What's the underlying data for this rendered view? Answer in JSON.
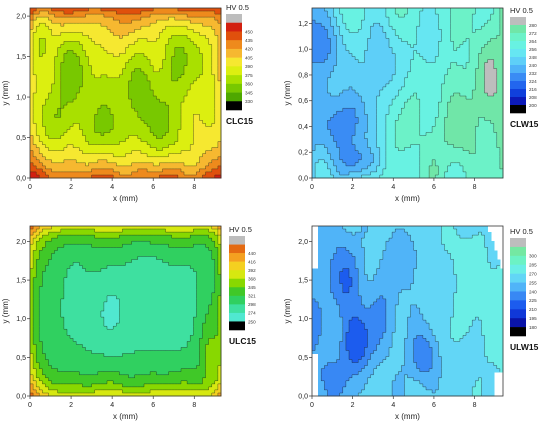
{
  "chart_data": [
    {
      "type": "heatmap",
      "panel_label": "CLC15",
      "xlabel": "x (mm)",
      "ylabel": "y (mm)",
      "xlim": [
        0,
        9.3
      ],
      "ylim": [
        0,
        2.1
      ],
      "x_ticks": [
        0,
        2,
        4,
        6,
        8
      ],
      "x_tick_labels": [
        "0",
        "2",
        "4",
        "6",
        "8"
      ],
      "y_ticks": [
        0,
        0.5,
        1,
        1.5,
        2
      ],
      "y_tick_labels": [
        "0,0",
        "0,5",
        "1,0",
        "1,5",
        "2,0"
      ],
      "colorbar": {
        "title": "HV 0.5",
        "levels": [
          330,
          345,
          360,
          375,
          390,
          405,
          420,
          435,
          450
        ],
        "labels": [
          "330",
          "345",
          "360",
          "375",
          "390",
          "405",
          "420",
          "435",
          "450"
        ],
        "colors": [
          "#000000",
          "#4ea800",
          "#78c800",
          "#a9e000",
          "#dcef10",
          "#f6e830",
          "#f6b830",
          "#ee8a1c",
          "#e0500c",
          "#d22010",
          "#bdbdbd"
        ]
      },
      "field": {
        "base": 383,
        "edges": [
          {
            "side": "bottom",
            "amp": 55,
            "scale": 0.28
          },
          {
            "side": "top",
            "amp": 62,
            "scale": 0.22
          },
          {
            "side": "left",
            "amp": 22,
            "scale": 0.4
          },
          {
            "side": "right",
            "amp": 18,
            "scale": 0.4
          }
        ],
        "blobs": [
          {
            "x": 2.2,
            "y": 1.3,
            "amp": -28,
            "sx": 0.8,
            "sy": 0.35
          },
          {
            "x": 5.6,
            "y": 1.0,
            "amp": -30,
            "sx": 1.2,
            "sy": 0.35
          },
          {
            "x": 3.6,
            "y": 0.55,
            "amp": -22,
            "sx": 1.0,
            "sy": 0.25
          },
          {
            "x": 7.4,
            "y": 1.6,
            "amp": -25,
            "sx": 0.7,
            "sy": 0.3
          },
          {
            "x": 1.3,
            "y": 0.7,
            "amp": -26,
            "sx": 0.5,
            "sy": 0.25
          },
          {
            "x": 6.6,
            "y": 0.45,
            "amp": -18,
            "sx": 0.9,
            "sy": 0.2
          },
          {
            "x": 0.5,
            "y": 1.7,
            "amp": -24,
            "sx": 0.4,
            "sy": 0.3
          },
          {
            "x": 4.3,
            "y": 1.7,
            "amp": 10,
            "sx": 0.8,
            "sy": 0.25
          }
        ],
        "waves": [
          {
            "kx": 2.1,
            "ky": 4.3,
            "amp": 7
          },
          {
            "kx": 3.7,
            "ky": 2.2,
            "amp": 5
          }
        ]
      },
      "domain": "rect"
    },
    {
      "type": "heatmap",
      "panel_label": "CLW15",
      "xlabel": "x (mm)",
      "ylabel": "y (mm)",
      "xlim": [
        0,
        9.4
      ],
      "ylim": [
        0,
        1.32
      ],
      "x_ticks": [
        0,
        2,
        4,
        6,
        8
      ],
      "x_tick_labels": [
        "0",
        "2",
        "4",
        "6",
        "8"
      ],
      "y_ticks": [
        0,
        0.2,
        0.4,
        0.6,
        0.8,
        1,
        1.2
      ],
      "y_tick_labels": [
        "0,0",
        "0,2",
        "0,4",
        "0,6",
        "0,8",
        "1,0",
        "1,2"
      ],
      "colorbar": {
        "title": "HV 0.5",
        "levels": [
          200,
          208,
          216,
          224,
          232,
          240,
          248,
          256,
          264,
          272,
          280
        ],
        "labels": [
          "200",
          "208",
          "216",
          "224",
          "232",
          "240",
          "248",
          "256",
          "264",
          "272",
          "280"
        ],
        "colors": [
          "#000000",
          "#0c1ab8",
          "#1040dc",
          "#2266ee",
          "#3a8cf4",
          "#4fb2f8",
          "#5ecff8",
          "#66e6f2",
          "#68f2e2",
          "#6cf2c8",
          "#70e6a8",
          "#bdbdbd"
        ]
      },
      "field": {
        "base": 262,
        "edges": [
          {
            "side": "left",
            "amp": -22,
            "scale": 0.8
          },
          {
            "side": "right",
            "amp": 10,
            "scale": 0.8
          }
        ],
        "blobs": [
          {
            "x": 1.7,
            "y": 0.42,
            "amp": -36,
            "sx": 0.8,
            "sy": 0.2
          },
          {
            "x": 0.8,
            "y": 1.0,
            "amp": -25,
            "sx": 0.6,
            "sy": 0.2
          },
          {
            "x": 3.2,
            "y": 0.9,
            "amp": -28,
            "sx": 0.5,
            "sy": 0.22
          },
          {
            "x": 2.4,
            "y": 0.12,
            "amp": -22,
            "sx": 0.8,
            "sy": 0.1
          },
          {
            "x": 5.5,
            "y": 1.0,
            "amp": -10,
            "sx": 0.8,
            "sy": 0.2
          },
          {
            "x": 8.2,
            "y": 0.6,
            "amp": 12,
            "sx": 1.0,
            "sy": 0.3
          },
          {
            "x": 6.4,
            "y": 0.3,
            "amp": 8,
            "sx": 0.9,
            "sy": 0.2
          }
        ],
        "waves": [
          {
            "kx": 2.3,
            "ky": 7.0,
            "amp": 5
          },
          {
            "kx": 3.3,
            "ky": 3.5,
            "amp": 4
          }
        ]
      },
      "domain": "rect"
    },
    {
      "type": "heatmap",
      "panel_label": "ULC15",
      "xlabel": "x (mm)",
      "ylabel": "y (mm)",
      "xlim": [
        0,
        9.3
      ],
      "ylim": [
        0,
        2.2
      ],
      "x_ticks": [
        0,
        2,
        4,
        6,
        8
      ],
      "x_tick_labels": [
        "0",
        "2",
        "4",
        "6",
        "8"
      ],
      "y_ticks": [
        0,
        0.5,
        1,
        1.5,
        2
      ],
      "y_tick_labels": [
        "0,0",
        "0,5",
        "1,0",
        "1,5",
        "2,0"
      ],
      "colorbar": {
        "title": "HV 0.5",
        "levels": [
          250,
          274,
          298,
          321,
          345,
          368,
          392,
          416,
          440
        ],
        "labels": [
          "250",
          "274",
          "298",
          "321",
          "345",
          "368",
          "392",
          "416",
          "440"
        ],
        "colors": [
          "#000000",
          "#50e8d0",
          "#3ee0a0",
          "#30d060",
          "#40c828",
          "#88d800",
          "#d6e810",
          "#f4d020",
          "#f4a020",
          "#e46a12",
          "#bdbdbd"
        ]
      },
      "field": {
        "base": 300,
        "edges": [
          {
            "side": "bottom",
            "amp": 90,
            "scale": 0.22
          },
          {
            "side": "top",
            "amp": 95,
            "scale": 0.18
          },
          {
            "side": "left",
            "amp": 75,
            "scale": 0.45
          },
          {
            "side": "right",
            "amp": 58,
            "scale": 0.3
          }
        ],
        "blobs": [
          {
            "x": 4.8,
            "y": 1.1,
            "amp": -25,
            "sx": 1.7,
            "sy": 0.42
          },
          {
            "x": 2.4,
            "y": 1.05,
            "amp": -10,
            "sx": 0.7,
            "sy": 0.3
          },
          {
            "x": 6.8,
            "y": 1.5,
            "amp": -10,
            "sx": 0.8,
            "sy": 0.35
          },
          {
            "x": 8.7,
            "y": 0.55,
            "amp": 35,
            "sx": 0.3,
            "sy": 0.3
          }
        ],
        "waves": [
          {
            "kx": 1.9,
            "ky": 3.0,
            "amp": 6
          },
          {
            "kx": 3.4,
            "ky": 2.3,
            "amp": 4
          }
        ]
      },
      "domain": "rect"
    },
    {
      "type": "heatmap",
      "panel_label": "ULW15",
      "xlabel": "x (mm)",
      "ylabel": "y (mm)",
      "xlim": [
        0,
        9.4
      ],
      "ylim": [
        0,
        2.2
      ],
      "x_ticks": [
        0,
        2,
        4,
        6,
        8
      ],
      "x_tick_labels": [
        "0",
        "2",
        "4",
        "6",
        "8"
      ],
      "y_ticks": [
        0,
        0.5,
        1,
        1.5,
        2
      ],
      "y_tick_labels": [
        "0,0",
        "0,5",
        "1,0",
        "1,5",
        "2,0"
      ],
      "colorbar": {
        "title": "HV 0.5",
        "levels": [
          180,
          195,
          210,
          225,
          240,
          255,
          270,
          285,
          300
        ],
        "labels": [
          "180",
          "195",
          "210",
          "225",
          "240",
          "255",
          "270",
          "285",
          "300"
        ],
        "colors": [
          "#000000",
          "#0a14a8",
          "#1038d8",
          "#1c5cee",
          "#3888f4",
          "#50b4f8",
          "#62d6f6",
          "#6aeee6",
          "#6cf2c4",
          "#74e8a2",
          "#bdbdbd"
        ]
      },
      "field": {
        "base": 262,
        "edges": [
          {
            "side": "left",
            "amp": -18,
            "scale": 1.2
          },
          {
            "side": "right",
            "amp": 12,
            "scale": 0.6
          }
        ],
        "blobs": [
          {
            "x": 2.1,
            "y": 0.68,
            "amp": -45,
            "sx": 0.5,
            "sy": 0.28
          },
          {
            "x": 1.6,
            "y": 1.5,
            "amp": -28,
            "sx": 0.7,
            "sy": 0.35
          },
          {
            "x": 3.4,
            "y": 1.0,
            "amp": -22,
            "sx": 0.7,
            "sy": 0.35
          },
          {
            "x": 5.5,
            "y": 0.5,
            "amp": -30,
            "sx": 0.55,
            "sy": 0.25
          },
          {
            "x": 1.0,
            "y": 0.2,
            "amp": -20,
            "sx": 0.6,
            "sy": 0.2
          },
          {
            "x": 4.6,
            "y": 1.8,
            "amp": -15,
            "sx": 0.7,
            "sy": 0.25
          },
          {
            "x": 8.0,
            "y": 1.2,
            "amp": 14,
            "sx": 1.0,
            "sy": 0.5
          },
          {
            "x": 6.8,
            "y": 1.9,
            "amp": 10,
            "sx": 0.8,
            "sy": 0.25
          }
        ],
        "waves": [
          {
            "kx": 2.5,
            "ky": 3.6,
            "amp": 6
          },
          {
            "kx": 3.9,
            "ky": 2.4,
            "amp": 4
          }
        ]
      },
      "domain": "ulw"
    }
  ]
}
